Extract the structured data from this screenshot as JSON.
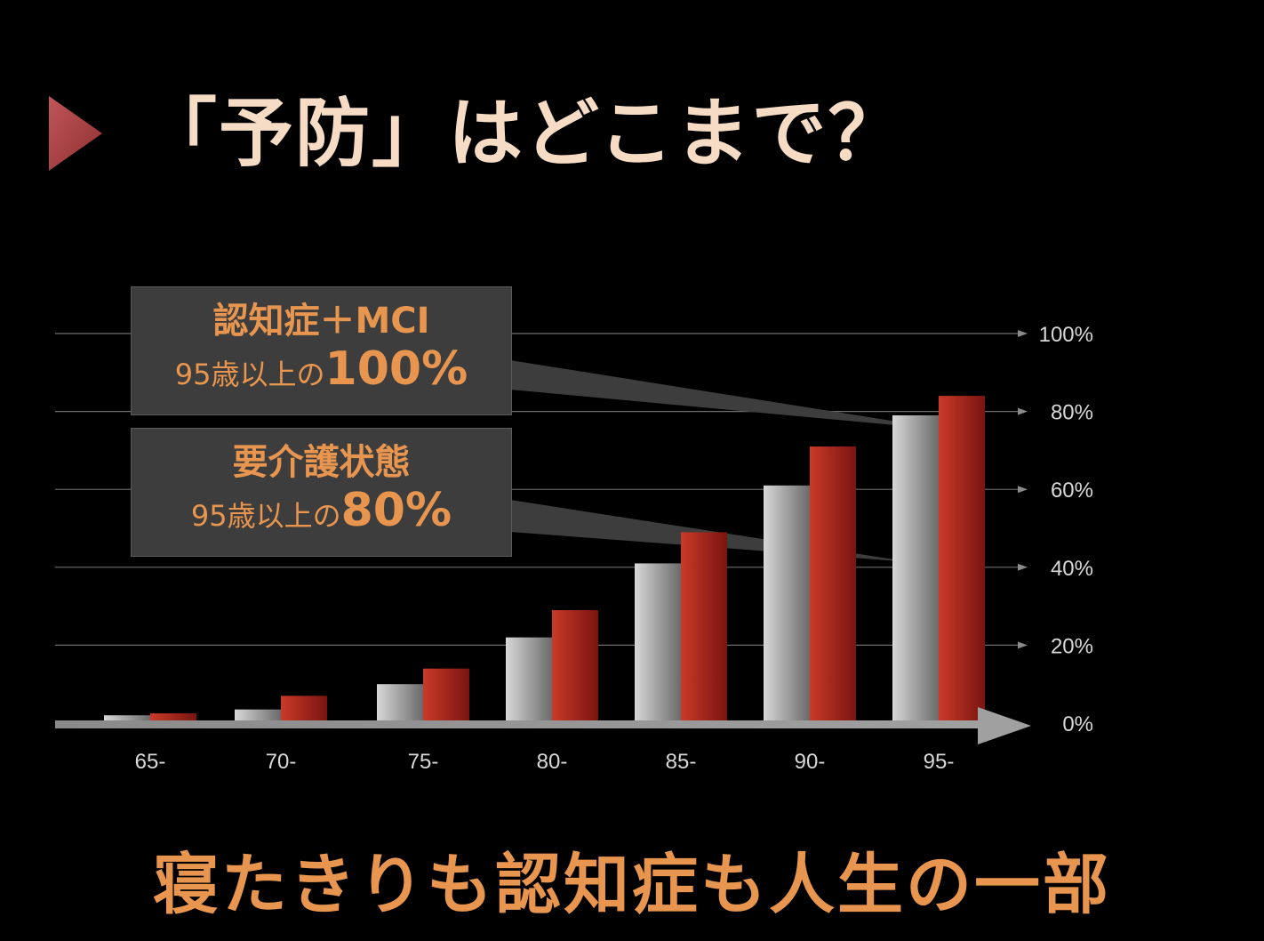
{
  "slide": {
    "title": "「予防」はどこまで？",
    "footer": "寝たきりも認知症も人生の一部"
  },
  "callouts": {
    "mci": {
      "head": "認知症＋MCI",
      "body_prefix": "95歳以上の",
      "body_value": "100%"
    },
    "care": {
      "head": "要介護状態",
      "body_prefix": "95歳以上の",
      "body_value": "80%"
    }
  },
  "colors": {
    "background": "#000000",
    "title": "#f6dcc4",
    "accent_orange": "#e8964f",
    "arrow_red": "#b2484a",
    "bar_gray": "#9a9a9a",
    "bar_red": "#b02418",
    "callout_bg": "#3d3d3d"
  },
  "chart_data": {
    "type": "bar",
    "categories": [
      "65-",
      "70-",
      "75-",
      "80-",
      "85-",
      "90-",
      "95-"
    ],
    "series": [
      {
        "values": [
          2,
          3.5,
          10,
          22,
          41,
          61,
          79
        ]
      },
      {
        "values": [
          2.5,
          7,
          14,
          29,
          49,
          71,
          84
        ]
      }
    ],
    "y_ticks": [
      "0%",
      "20%",
      "40%",
      "60%",
      "80%",
      "100%"
    ],
    "ylim": [
      0,
      100
    ],
    "grid": true
  }
}
